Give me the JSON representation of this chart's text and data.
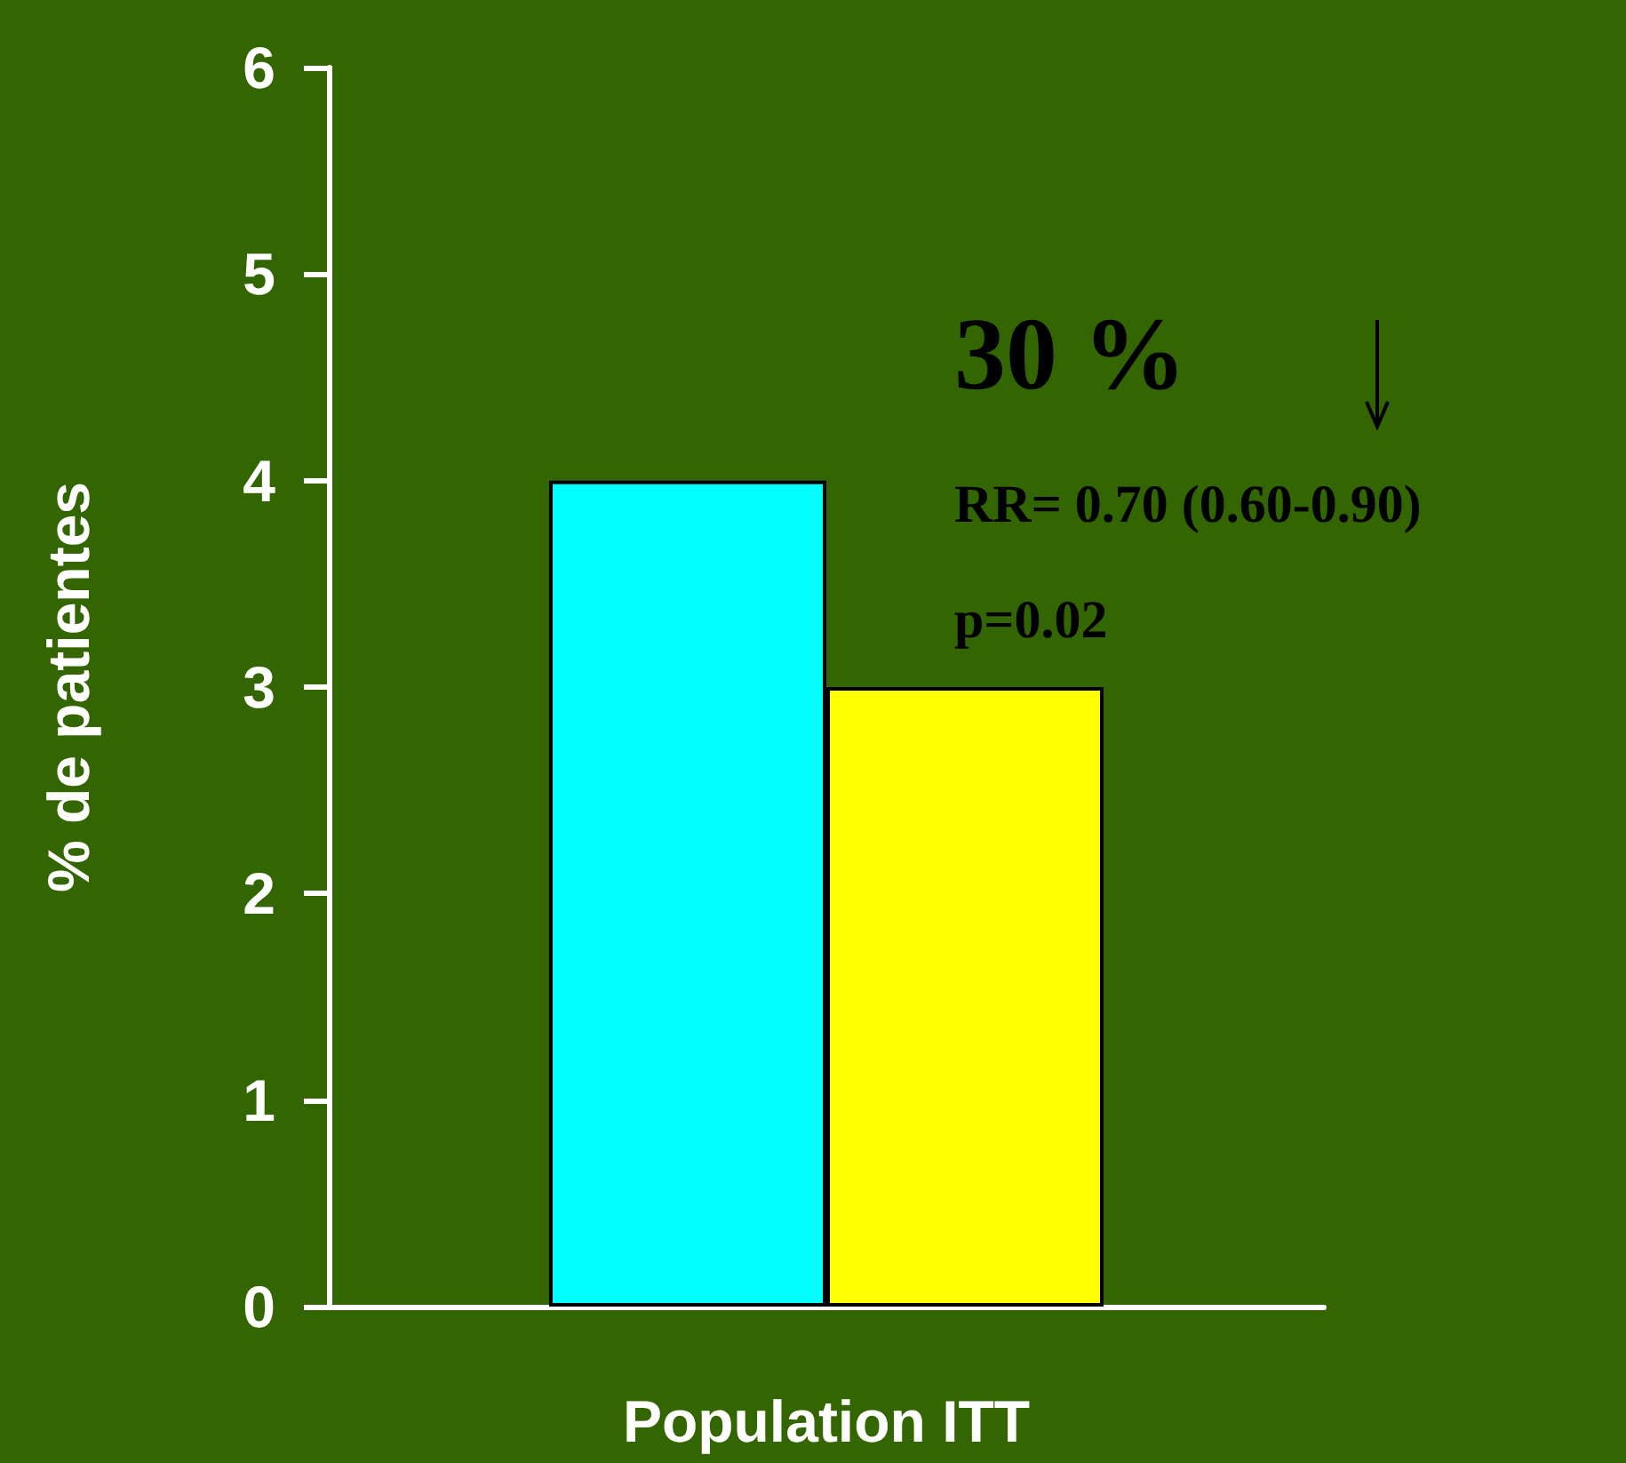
{
  "chart_data": {
    "type": "bar",
    "ylabel": "% de patientes",
    "categories": [
      "Population ITT"
    ],
    "series": [
      {
        "color": "#00ffff",
        "values": [
          4
        ]
      },
      {
        "color": "#ffff00",
        "values": [
          3
        ]
      }
    ],
    "ylim": [
      0,
      6
    ],
    "yticks": [
      0,
      1,
      2,
      3,
      4,
      5,
      6
    ],
    "grid": false,
    "annotations": [
      "30 %",
      "RR= 0.70 (0.60-0.90)",
      "p=0.02"
    ]
  }
}
